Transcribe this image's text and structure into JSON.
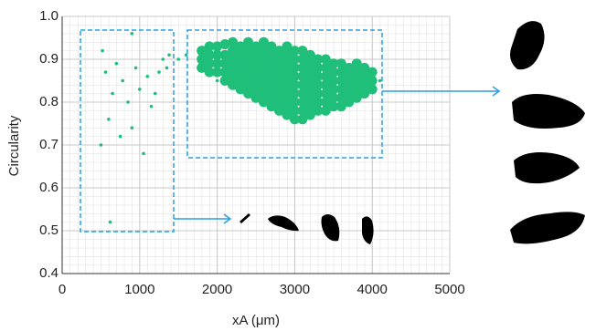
{
  "chart_data": {
    "type": "scatter",
    "x_label": "xA (μm)",
    "y_label": "Circularity",
    "color": "#1fbf7a",
    "xlim": [
      0,
      5000
    ],
    "xticks": [
      0,
      1000,
      2000,
      3000,
      4000,
      5000
    ],
    "ylim": [
      0.4,
      1.0
    ],
    "yticks": [
      0.4,
      0.5,
      0.6,
      0.7,
      0.8,
      0.9,
      {
        "value": 1.0,
        "label": "1.0"
      }
    ],
    "grid": true,
    "x": [
      520,
      900,
      560,
      700,
      780,
      950,
      1100,
      1250,
      1300,
      650,
      850,
      1000,
      1150,
      1200,
      1350,
      600,
      750,
      900,
      1050,
      500,
      620,
      1380,
      1500,
      1600,
      1800,
      1800,
      1800,
      1900,
      1900,
      1900,
      1900,
      2000,
      2000,
      2000,
      2000,
      2000,
      2100,
      2100,
      2100,
      2100,
      2100,
      2200,
      2200,
      2200,
      2200,
      2200,
      2200,
      2300,
      2300,
      2300,
      2300,
      2300,
      2300,
      2400,
      2400,
      2400,
      2400,
      2400,
      2400,
      2400,
      2500,
      2500,
      2500,
      2500,
      2500,
      2500,
      2500,
      2600,
      2600,
      2600,
      2600,
      2600,
      2600,
      2600,
      2600,
      2700,
      2700,
      2700,
      2700,
      2700,
      2700,
      2700,
      2700,
      2800,
      2800,
      2800,
      2800,
      2800,
      2800,
      2800,
      2800,
      2900,
      2900,
      2900,
      2900,
      2900,
      2900,
      2900,
      2900,
      2900,
      3000,
      3000,
      3000,
      3000,
      3000,
      3000,
      3000,
      3000,
      3000,
      3100,
      3100,
      3100,
      3100,
      3100,
      3100,
      3100,
      3100,
      3100,
      3200,
      3200,
      3200,
      3200,
      3200,
      3200,
      3200,
      3200,
      3300,
      3300,
      3300,
      3300,
      3300,
      3300,
      3300,
      3400,
      3400,
      3400,
      3400,
      3400,
      3400,
      3400,
      3500,
      3500,
      3500,
      3500,
      3500,
      3500,
      3600,
      3600,
      3600,
      3600,
      3600,
      3600,
      3700,
      3700,
      3700,
      3700,
      3700,
      3800,
      3800,
      3800,
      3800,
      3800,
      3900,
      3900,
      3900,
      3900,
      4000,
      4000,
      4000,
      4100
    ],
    "values": [
      0.92,
      0.96,
      0.87,
      0.89,
      0.85,
      0.88,
      0.86,
      0.87,
      0.9,
      0.82,
      0.8,
      0.83,
      0.79,
      0.82,
      0.88,
      0.76,
      0.72,
      0.74,
      0.68,
      0.7,
      0.52,
      0.91,
      0.9,
      0.91,
      0.88,
      0.9,
      0.92,
      0.87,
      0.89,
      0.91,
      0.93,
      0.85,
      0.87,
      0.89,
      0.91,
      0.93,
      0.85,
      0.87,
      0.89,
      0.91,
      0.935,
      0.84,
      0.86,
      0.88,
      0.9,
      0.92,
      0.94,
      0.83,
      0.85,
      0.87,
      0.89,
      0.91,
      0.93,
      0.82,
      0.84,
      0.86,
      0.88,
      0.9,
      0.92,
      0.94,
      0.81,
      0.83,
      0.85,
      0.87,
      0.89,
      0.91,
      0.93,
      0.8,
      0.82,
      0.84,
      0.86,
      0.88,
      0.9,
      0.92,
      0.94,
      0.79,
      0.81,
      0.83,
      0.85,
      0.87,
      0.89,
      0.91,
      0.93,
      0.78,
      0.8,
      0.82,
      0.84,
      0.86,
      0.88,
      0.9,
      0.92,
      0.77,
      0.79,
      0.81,
      0.83,
      0.85,
      0.87,
      0.89,
      0.91,
      0.93,
      0.76,
      0.78,
      0.8,
      0.82,
      0.84,
      0.86,
      0.88,
      0.9,
      0.92,
      0.76,
      0.78,
      0.8,
      0.82,
      0.84,
      0.86,
      0.88,
      0.9,
      0.92,
      0.77,
      0.79,
      0.81,
      0.83,
      0.85,
      0.87,
      0.89,
      0.91,
      0.78,
      0.8,
      0.82,
      0.84,
      0.86,
      0.88,
      0.9,
      0.78,
      0.8,
      0.82,
      0.84,
      0.86,
      0.88,
      0.9,
      0.79,
      0.81,
      0.83,
      0.85,
      0.87,
      0.89,
      0.79,
      0.81,
      0.83,
      0.85,
      0.87,
      0.89,
      0.8,
      0.82,
      0.84,
      0.86,
      0.88,
      0.81,
      0.83,
      0.85,
      0.87,
      0.89,
      0.82,
      0.84,
      0.86,
      0.88,
      0.83,
      0.85,
      0.87,
      0.85
    ]
  }
}
